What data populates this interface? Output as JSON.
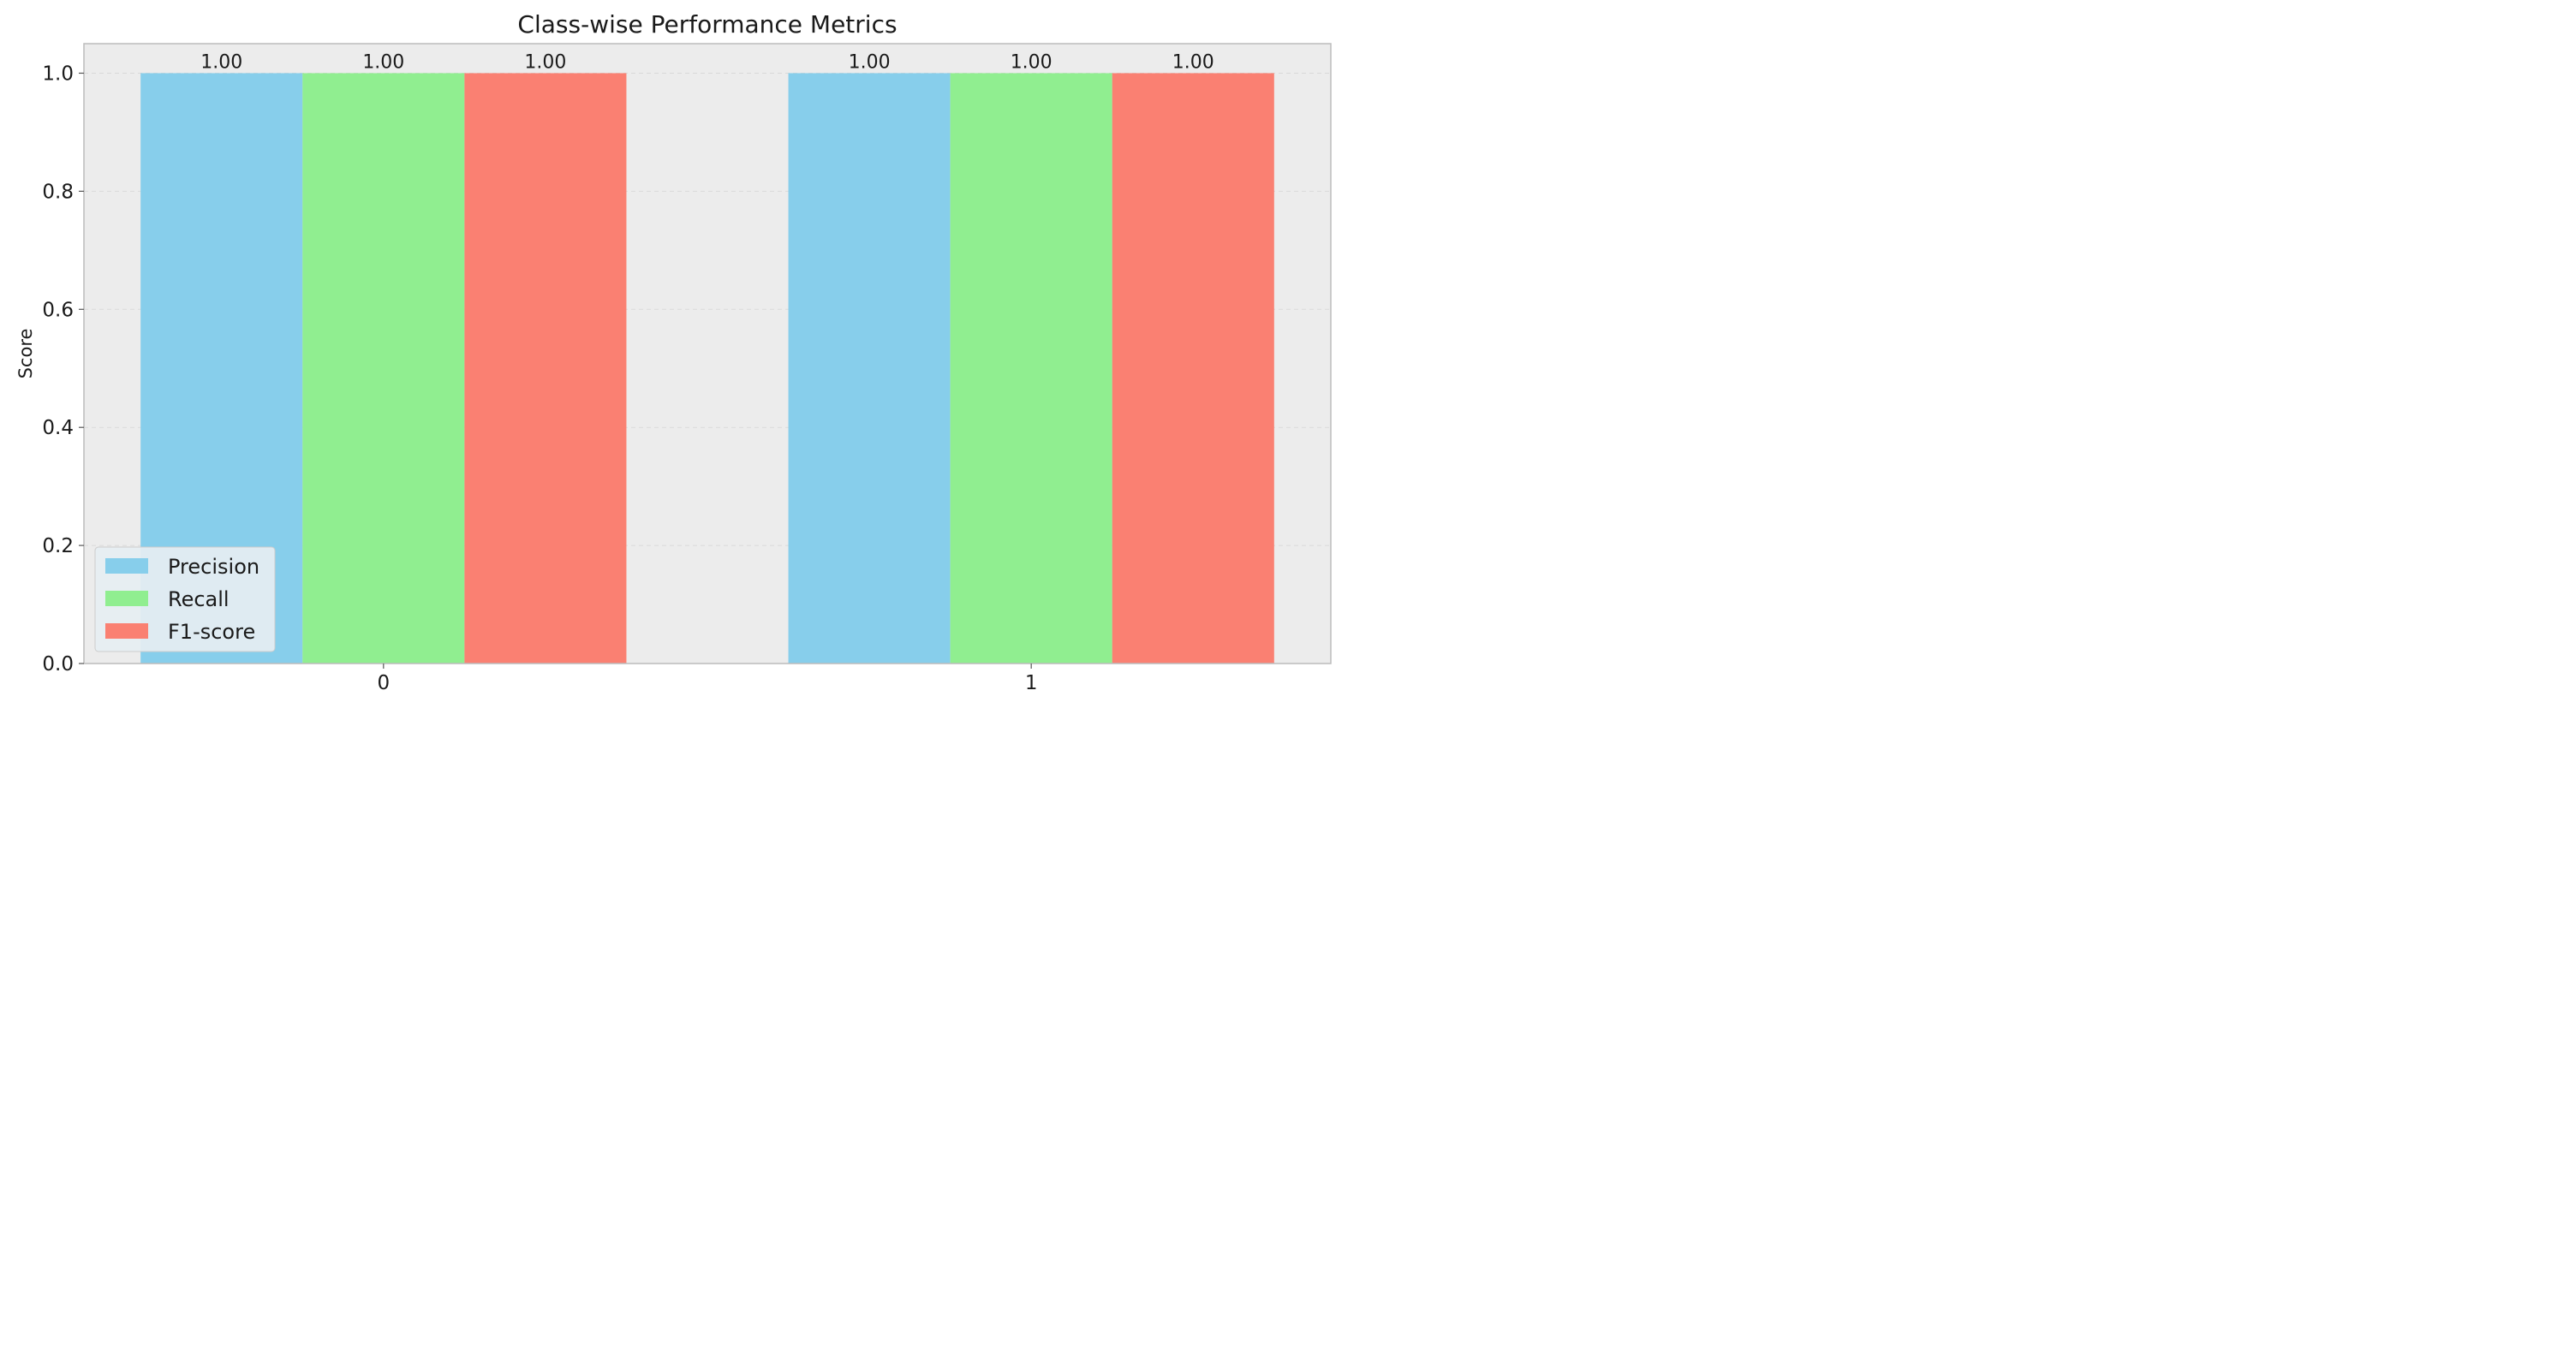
{
  "chart_data": {
    "type": "bar",
    "title": "Class-wise Performance Metrics",
    "xlabel": "",
    "ylabel": "Score",
    "categories": [
      "0",
      "1"
    ],
    "series": [
      {
        "name": "Precision",
        "values": [
          1.0,
          1.0
        ],
        "color": "#87ceeb"
      },
      {
        "name": "Recall",
        "values": [
          1.0,
          1.0
        ],
        "color": "#90ee90"
      },
      {
        "name": "F1-score",
        "values": [
          1.0,
          1.0
        ],
        "color": "#fa8072"
      }
    ],
    "data_labels": [
      [
        "1.00",
        "1.00"
      ],
      [
        "1.00",
        "1.00"
      ],
      [
        "1.00",
        "1.00"
      ]
    ],
    "ylim": [
      0,
      1.05
    ],
    "yticks": [
      0.0,
      0.2,
      0.4,
      0.6,
      0.8,
      1.0
    ],
    "ytick_labels": [
      "0.0",
      "0.2",
      "0.4",
      "0.6",
      "0.8",
      "1.0"
    ],
    "grid": "y-dashed",
    "legend_position": "lower-left",
    "colors": {
      "plot_background": "#ececec",
      "axes_edge": "#bcbcbc",
      "grid": "#d9d9d9"
    }
  }
}
